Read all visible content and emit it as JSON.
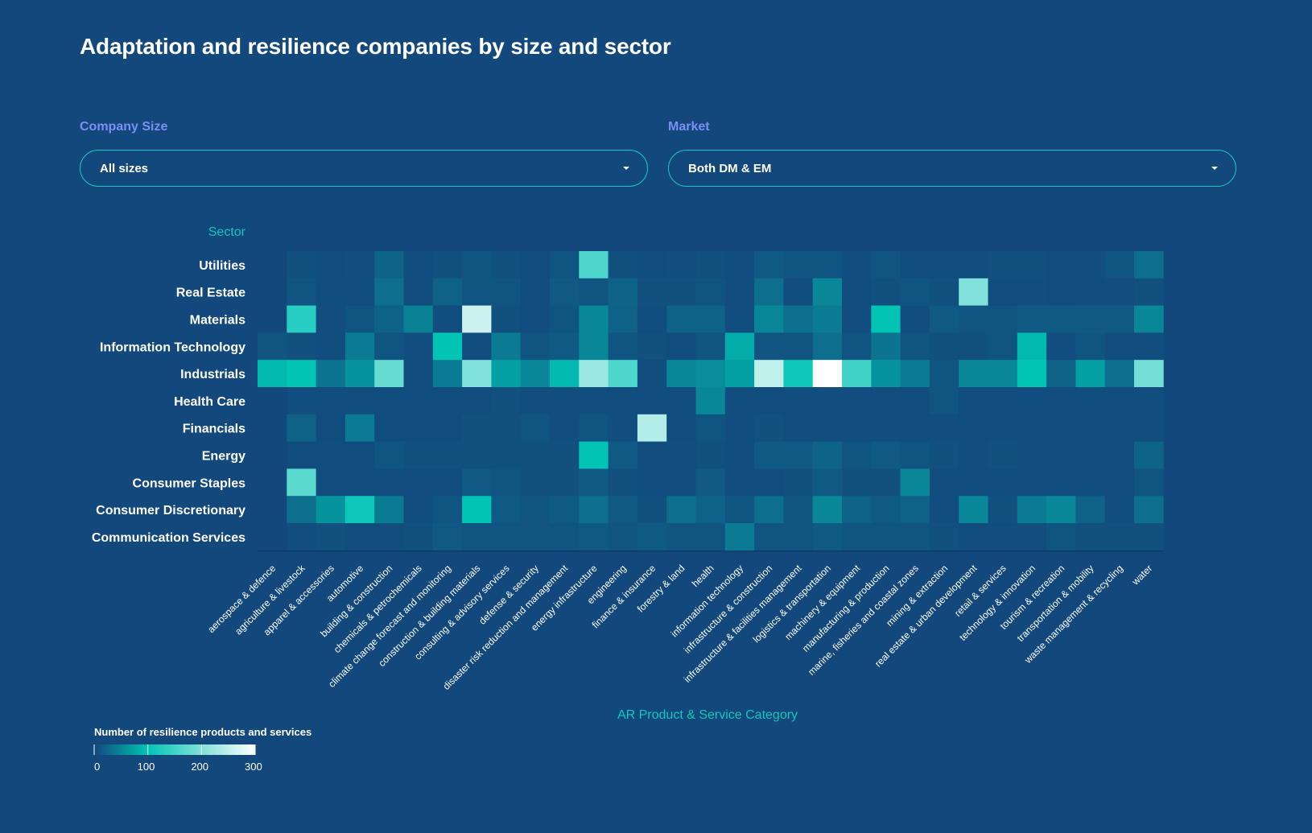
{
  "page": {
    "title": "Adaptation and resilience companies by size and sector"
  },
  "filters": {
    "company_size": {
      "label": "Company Size",
      "value": "All sizes"
    },
    "market": {
      "label": "Market",
      "value": "Both DM & EM"
    }
  },
  "colors": {
    "background": "#12487c",
    "accent": "#12c7bb",
    "filter_label": "#7d8ef5",
    "scale": [
      "#12487c",
      "#00c4b4",
      "#ffffff"
    ]
  },
  "chart_data": {
    "type": "heatmap",
    "ylabel": "Sector",
    "xlabel": "AR Product & Service Category",
    "legend_title": "Number of resilience products and services",
    "legend_ticks": [
      "0",
      "100",
      "200",
      "300"
    ],
    "scale_max": 300,
    "rows": [
      "Utilities",
      "Real Estate",
      "Materials",
      "Information Technology",
      "Industrials",
      "Health Care",
      "Financials",
      "Energy",
      "Consumer Staples",
      "Consumer Discretionary",
      "Communication Services"
    ],
    "columns": [
      "aerospace & defence",
      "agriculture & livestock",
      "apparel & accessories",
      "automotive",
      "building & construction",
      "chemicals & petrochemicals",
      "climate change forecast and monitoring",
      "construction & building materials",
      "consulting & advisory services",
      "defense & security",
      "disaster risk reduction and management",
      "energy infrastructure",
      "engineering",
      "finance & insurance",
      "forestry & land",
      "health",
      "information technology",
      "infrastructure & construction",
      "infrastructure & facilities management",
      "logistics & transportation",
      "machinery & equipment",
      "manufacturing & production",
      "marine, fisheries and coastal zones",
      "mining & extraction",
      "real estate & urban development",
      "retail & services",
      "technology & innovation",
      "tourism & recreation",
      "transportation & mobility",
      "waste management & recycling",
      "water"
    ],
    "values": [
      [
        0,
        6,
        3,
        4,
        22,
        4,
        6,
        10,
        6,
        3,
        10,
        160,
        6,
        3,
        4,
        6,
        4,
        14,
        10,
        10,
        4,
        10,
        4,
        4,
        4,
        6,
        6,
        3,
        4,
        10,
        30
      ],
      [
        0,
        10,
        4,
        4,
        30,
        4,
        20,
        10,
        10,
        4,
        14,
        10,
        22,
        6,
        6,
        10,
        4,
        30,
        4,
        50,
        4,
        6,
        10,
        6,
        200,
        4,
        4,
        3,
        4,
        4,
        6
      ],
      [
        0,
        130,
        4,
        10,
        20,
        45,
        4,
        260,
        6,
        4,
        10,
        50,
        20,
        4,
        20,
        20,
        4,
        50,
        30,
        40,
        4,
        100,
        4,
        14,
        10,
        10,
        14,
        14,
        14,
        14,
        50
      ],
      [
        10,
        6,
        4,
        40,
        10,
        4,
        100,
        4,
        40,
        10,
        14,
        50,
        10,
        6,
        3,
        10,
        80,
        10,
        10,
        30,
        10,
        35,
        10,
        6,
        6,
        10,
        90,
        4,
        10,
        4,
        4
      ],
      [
        90,
        100,
        35,
        60,
        180,
        4,
        40,
        200,
        70,
        50,
        90,
        220,
        160,
        4,
        50,
        55,
        70,
        250,
        110,
        300,
        150,
        60,
        40,
        10,
        50,
        50,
        100,
        20,
        70,
        30,
        190
      ],
      [
        0,
        4,
        4,
        4,
        4,
        4,
        4,
        4,
        6,
        4,
        4,
        4,
        4,
        4,
        4,
        50,
        4,
        3,
        4,
        4,
        4,
        4,
        4,
        10,
        4,
        4,
        4,
        4,
        4,
        4,
        4
      ],
      [
        0,
        20,
        3,
        40,
        3,
        3,
        3,
        6,
        6,
        10,
        4,
        10,
        4,
        240,
        3,
        10,
        4,
        6,
        4,
        4,
        4,
        4,
        4,
        4,
        4,
        4,
        4,
        4,
        4,
        4,
        4
      ],
      [
        0,
        3,
        4,
        4,
        10,
        6,
        6,
        6,
        6,
        6,
        6,
        100,
        14,
        4,
        4,
        6,
        4,
        14,
        14,
        22,
        10,
        14,
        10,
        6,
        4,
        6,
        4,
        4,
        4,
        4,
        22
      ],
      [
        0,
        170,
        4,
        4,
        4,
        4,
        4,
        14,
        10,
        6,
        6,
        14,
        6,
        4,
        4,
        14,
        4,
        4,
        6,
        14,
        6,
        6,
        50,
        4,
        4,
        4,
        4,
        4,
        4,
        4,
        10
      ],
      [
        0,
        30,
        60,
        110,
        40,
        4,
        10,
        100,
        14,
        10,
        14,
        30,
        14,
        6,
        30,
        20,
        10,
        30,
        10,
        50,
        20,
        14,
        20,
        4,
        50,
        6,
        40,
        50,
        20,
        4,
        30
      ],
      [
        0,
        4,
        6,
        4,
        4,
        6,
        14,
        10,
        10,
        10,
        10,
        14,
        10,
        14,
        10,
        10,
        40,
        10,
        10,
        14,
        10,
        10,
        10,
        6,
        4,
        4,
        4,
        10,
        6,
        6,
        6
      ]
    ]
  }
}
